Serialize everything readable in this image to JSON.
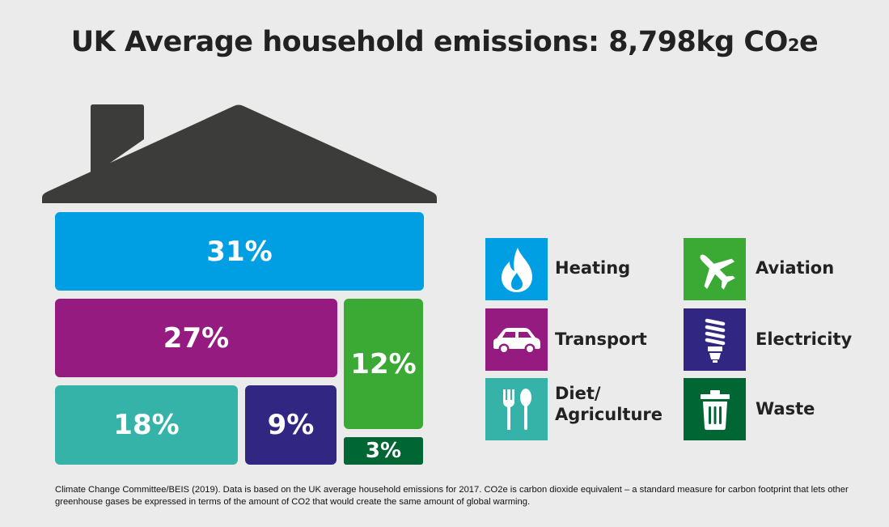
{
  "title": {
    "main": "UK Average household emissions: 8,798kg CO",
    "subscript": "2",
    "suffix": "e"
  },
  "chart_data": {
    "type": "treemap",
    "total": "8,798kg CO2e",
    "categories": [
      "Heating",
      "Transport",
      "Diet/Agriculture",
      "Electricity",
      "Aviation",
      "Waste"
    ],
    "values": [
      31,
      27,
      18,
      9,
      12,
      3
    ],
    "labels": [
      "31%",
      "27%",
      "18%",
      "9%",
      "12%",
      "3%"
    ],
    "colors": [
      "#009fe3",
      "#951b81",
      "#36b3a8",
      "#312783",
      "#3aaa35",
      "#006633"
    ]
  },
  "legend": [
    {
      "label": "Heating",
      "icon": "flame-icon",
      "color": "#009fe3"
    },
    {
      "label": "Aviation",
      "icon": "airplane-icon",
      "color": "#3aaa35"
    },
    {
      "label": "Transport",
      "icon": "car-icon",
      "color": "#951b81"
    },
    {
      "label": "Electricity",
      "icon": "lightbulb-icon",
      "color": "#312783"
    },
    {
      "label": "Diet/\nAgriculture",
      "icon": "fork-spoon-icon",
      "color": "#36b3a8"
    },
    {
      "label": "Waste",
      "icon": "trash-bin-icon",
      "color": "#006633"
    }
  ],
  "roof_color": "#3c3c3b",
  "footnote": "Climate Change Committee/BEIS (2019). Data is based on the UK average household emissions for 2017. CO2e is carbon dioxide equivalent – a standard measure for carbon footprint that lets other greenhouse gases be expressed in terms of the amount of CO2 that would create the same amount of global warming."
}
